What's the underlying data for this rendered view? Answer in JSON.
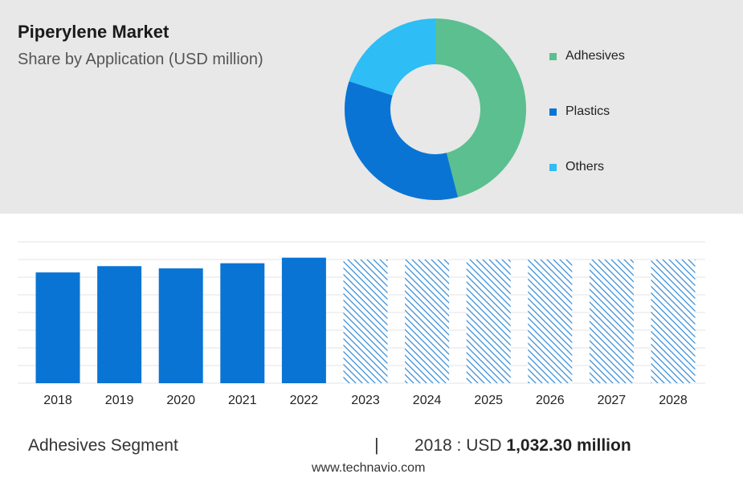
{
  "header": {
    "title": "Piperylene Market",
    "subtitle": "Share by Application (USD million)"
  },
  "colors": {
    "adhesives": "#5bbf8f",
    "plastics": "#0a74d4",
    "others": "#2ebdf5",
    "bar": "#0a74d4",
    "forecast_hatch": "#3a8fd8"
  },
  "chart_data": [
    {
      "type": "pie",
      "subtype": "donut",
      "series": [
        {
          "name": "Adhesives",
          "value": 46,
          "color": "#5bbf8f"
        },
        {
          "name": "Plastics",
          "value": 34,
          "color": "#0a74d4"
        },
        {
          "name": "Others",
          "value": 20,
          "color": "#2ebdf5"
        }
      ],
      "legend": [
        "Adhesives",
        "Plastics",
        "Others"
      ],
      "legend_position": "right"
    },
    {
      "type": "bar",
      "categories": [
        "2018",
        "2019",
        "2020",
        "2021",
        "2022",
        "2023",
        "2024",
        "2025",
        "2026",
        "2027",
        "2028"
      ],
      "values": [
        1032.3,
        1091,
        1070,
        1118,
        1170,
        null,
        null,
        null,
        null,
        null,
        null
      ],
      "forecast_from": "2023",
      "ylim": [
        0,
        1400
      ],
      "grid": true,
      "xlabel": "",
      "ylabel": ""
    }
  ],
  "footer": {
    "segment_label": "Adhesives Segment",
    "separator": "|",
    "value_prefix": "2018 : USD ",
    "value_bold": "1,032.30 million",
    "source": "www.technavio.com"
  }
}
